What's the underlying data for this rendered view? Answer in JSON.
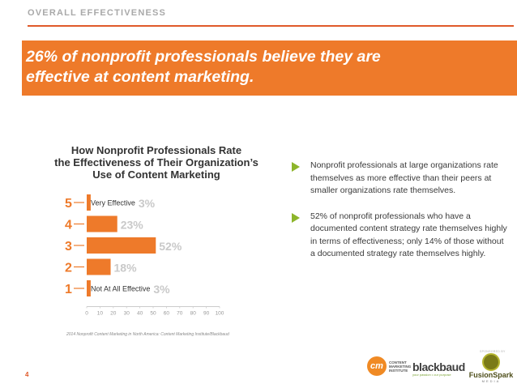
{
  "header": {
    "section_label": "OVERALL EFFECTIVENESS",
    "headline": "26% of nonprofit professionals believe they are\neffective at content marketing."
  },
  "chart_data": {
    "type": "bar",
    "orientation": "horizontal",
    "title": "How Nonprofit Professionals Rate\nthe Effectiveness of Their Organization’s\nUse of Content Marketing",
    "categories": [
      "5",
      "4",
      "3",
      "2",
      "1"
    ],
    "category_labels": [
      "Very Effective",
      "",
      "",
      "",
      "Not At All Effective"
    ],
    "values": [
      3,
      23,
      52,
      18,
      3
    ],
    "value_labels": [
      "3%",
      "23%",
      "52%",
      "18%",
      "3%"
    ],
    "xlim": [
      0,
      100
    ],
    "xticks": [
      "0",
      "10",
      "20",
      "30",
      "40",
      "50",
      "60",
      "70",
      "80",
      "90",
      "100"
    ],
    "colors": {
      "bar": "#ee7a2a",
      "value_label": "#c9c9c9",
      "category": "#ee7a2a",
      "tick": "#999999"
    },
    "grid": false,
    "source": "2014 Nonprofit Content Marketing in North America: Content Marketing Institute/Blackbaud"
  },
  "bullets": [
    "Nonprofit professionals at large organizations rate themselves as more effective than their peers at smaller organizations rate themselves.",
    "52% of nonprofit professionals who have a documented content strategy rate themselves highly in terms of effectiveness; only 14% of those without a documented strategy rate themselves highly."
  ],
  "footer": {
    "page_number": "4",
    "sponsored_label": "SPONSORED BY",
    "cmi_mark": "cm",
    "cmi_text": "CONTENT\nMARKETING\nINSTITUTE",
    "bb_name": "blackbaud",
    "bb_tag": "your passion • our purpose",
    "fs_name": "FusionSpark",
    "fs_sub": "MEDIA"
  }
}
